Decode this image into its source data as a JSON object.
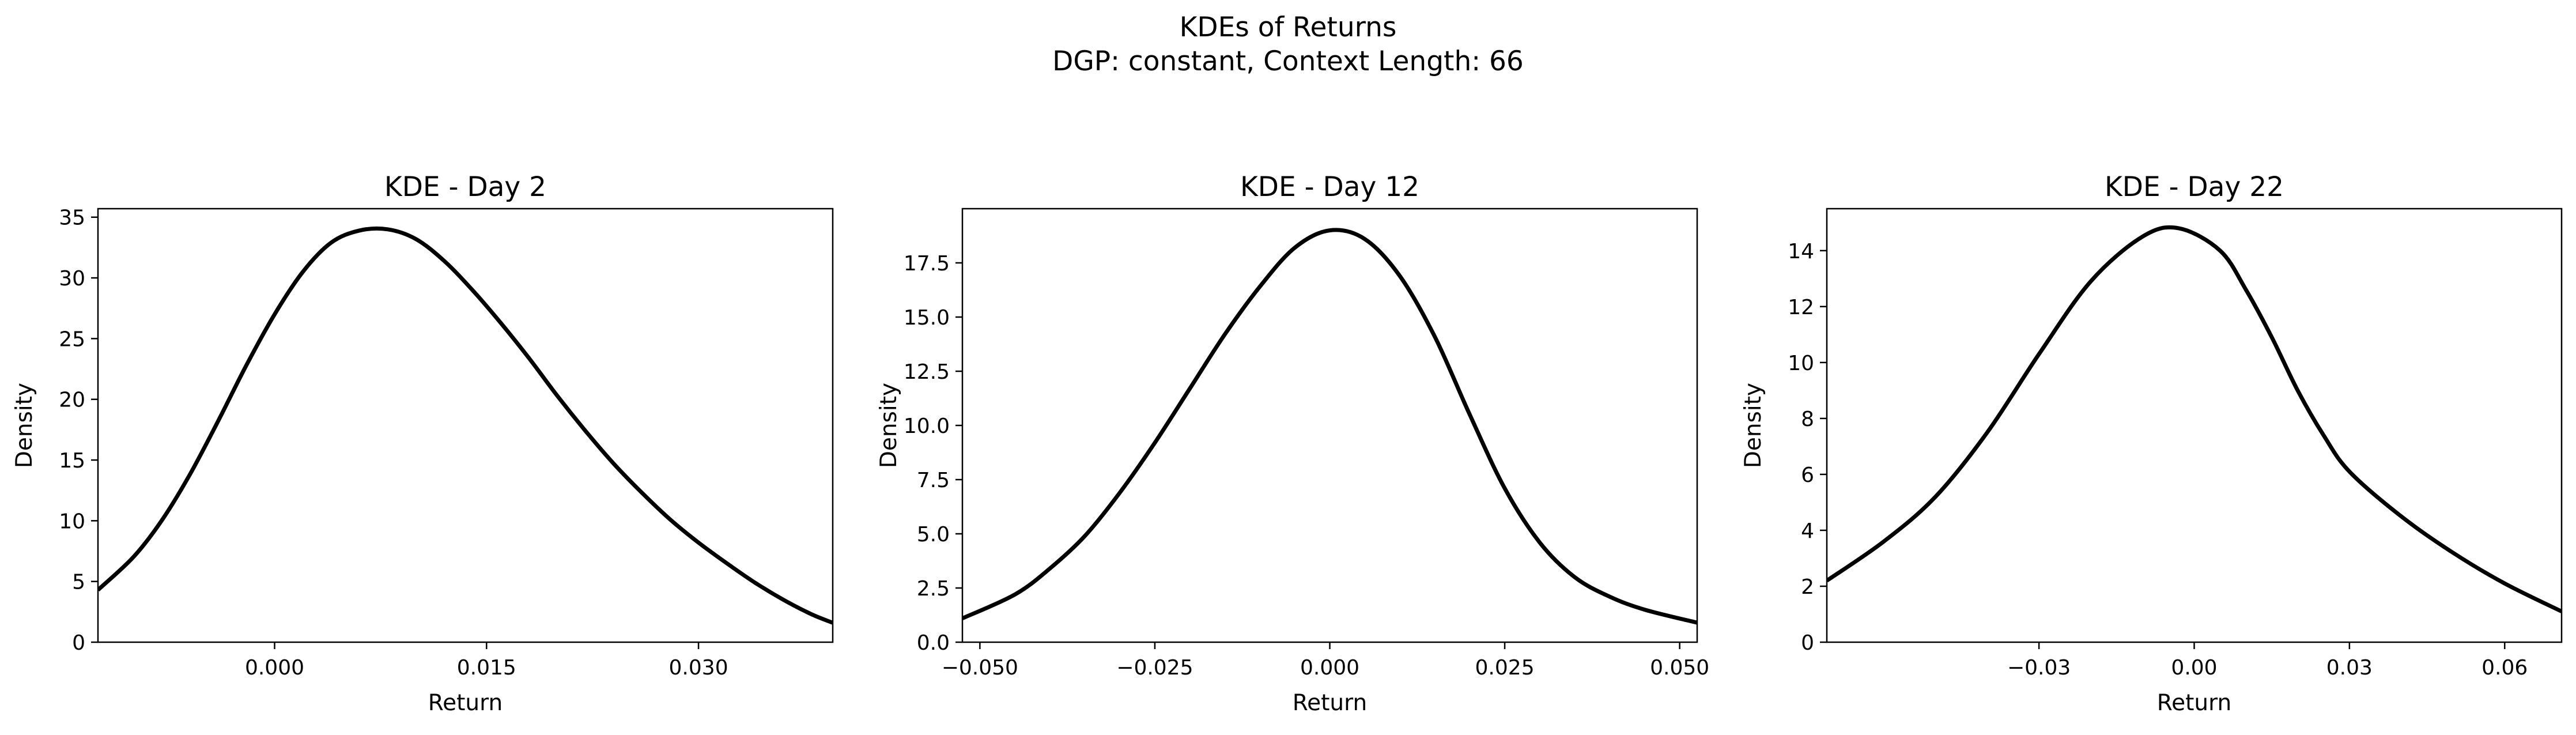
{
  "figure": {
    "title_line1": "KDEs of Returns",
    "title_line2": "DGP: constant, Context Length: 66"
  },
  "chart_data": [
    {
      "type": "line",
      "title": "KDE - Day 2",
      "xlabel": "Return",
      "ylabel": "Density",
      "xlim": [
        -0.0125,
        0.0395
      ],
      "ylim": [
        0,
        35.7
      ],
      "xticks": [
        0.0,
        0.015,
        0.03
      ],
      "xtick_labels": [
        "0.000",
        "0.015",
        "0.030"
      ],
      "yticks": [
        0,
        5,
        10,
        15,
        20,
        25,
        30,
        35
      ],
      "ytick_labels": [
        "0",
        "5",
        "10",
        "15",
        "20",
        "25",
        "30",
        "35"
      ],
      "series": [
        {
          "color": "#000000",
          "x": [
            -0.0125,
            -0.01,
            -0.008,
            -0.006,
            -0.004,
            -0.002,
            0.0,
            0.002,
            0.004,
            0.006,
            0.008,
            0.01,
            0.012,
            0.014,
            0.016,
            0.018,
            0.02,
            0.022,
            0.024,
            0.026,
            0.028,
            0.03,
            0.032,
            0.034,
            0.036,
            0.038,
            0.0395
          ],
          "y": [
            4.3,
            7.0,
            10.0,
            13.8,
            18.2,
            22.8,
            27.0,
            30.5,
            32.9,
            33.9,
            34.0,
            33.2,
            31.4,
            29.0,
            26.3,
            23.4,
            20.3,
            17.4,
            14.7,
            12.3,
            10.1,
            8.2,
            6.5,
            4.9,
            3.5,
            2.3,
            1.6
          ]
        }
      ],
      "grid": false
    },
    {
      "type": "line",
      "title": "KDE - Day 12",
      "xlabel": "Return",
      "ylabel": "Density",
      "xlim": [
        -0.0525,
        0.0525
      ],
      "ylim": [
        0,
        20
      ],
      "xticks": [
        -0.05,
        -0.025,
        0.0,
        0.025,
        0.05
      ],
      "xtick_labels": [
        "−0.050",
        "−0.025",
        "0.000",
        "0.025",
        "0.050"
      ],
      "yticks": [
        0,
        2.5,
        5,
        7.5,
        10,
        12.5,
        15,
        17.5
      ],
      "ytick_labels": [
        "0.0",
        "2.5",
        "5.0",
        "7.5",
        "10.0",
        "12.5",
        "15.0",
        "17.5"
      ],
      "series": [
        {
          "color": "#000000",
          "x": [
            -0.0525,
            -0.045,
            -0.04,
            -0.035,
            -0.03,
            -0.025,
            -0.02,
            -0.015,
            -0.01,
            -0.005,
            0.0,
            0.005,
            0.01,
            0.015,
            0.02,
            0.025,
            0.03,
            0.035,
            0.04,
            0.045,
            0.0525
          ],
          "y": [
            1.1,
            2.2,
            3.4,
            4.9,
            6.9,
            9.2,
            11.7,
            14.2,
            16.4,
            18.2,
            19.0,
            18.6,
            16.9,
            14.1,
            10.5,
            7.1,
            4.6,
            3.0,
            2.1,
            1.5,
            0.9
          ]
        }
      ],
      "grid": false
    },
    {
      "type": "line",
      "title": "KDE - Day 22",
      "xlabel": "Return",
      "ylabel": "Density",
      "xlim": [
        -0.071,
        0.071
      ],
      "ylim": [
        0,
        15.5
      ],
      "xticks": [
        -0.03,
        0.0,
        0.03,
        0.06
      ],
      "xtick_labels": [
        "−0.03",
        "0.00",
        "0.03",
        "0.06"
      ],
      "yticks": [
        0,
        2,
        4,
        6,
        8,
        10,
        12,
        14
      ],
      "ytick_labels": [
        "0",
        "2",
        "4",
        "6",
        "8",
        "10",
        "12",
        "14"
      ],
      "series": [
        {
          "color": "#000000",
          "x": [
            -0.071,
            -0.06,
            -0.05,
            -0.04,
            -0.03,
            -0.02,
            -0.01,
            -0.003,
            0.005,
            0.01,
            0.015,
            0.02,
            0.025,
            0.03,
            0.04,
            0.05,
            0.06,
            0.071
          ],
          "y": [
            2.2,
            3.6,
            5.2,
            7.5,
            10.3,
            12.9,
            14.5,
            14.8,
            14.0,
            12.6,
            10.9,
            9.0,
            7.4,
            6.1,
            4.5,
            3.2,
            2.1,
            1.1
          ]
        }
      ],
      "grid": false
    }
  ]
}
